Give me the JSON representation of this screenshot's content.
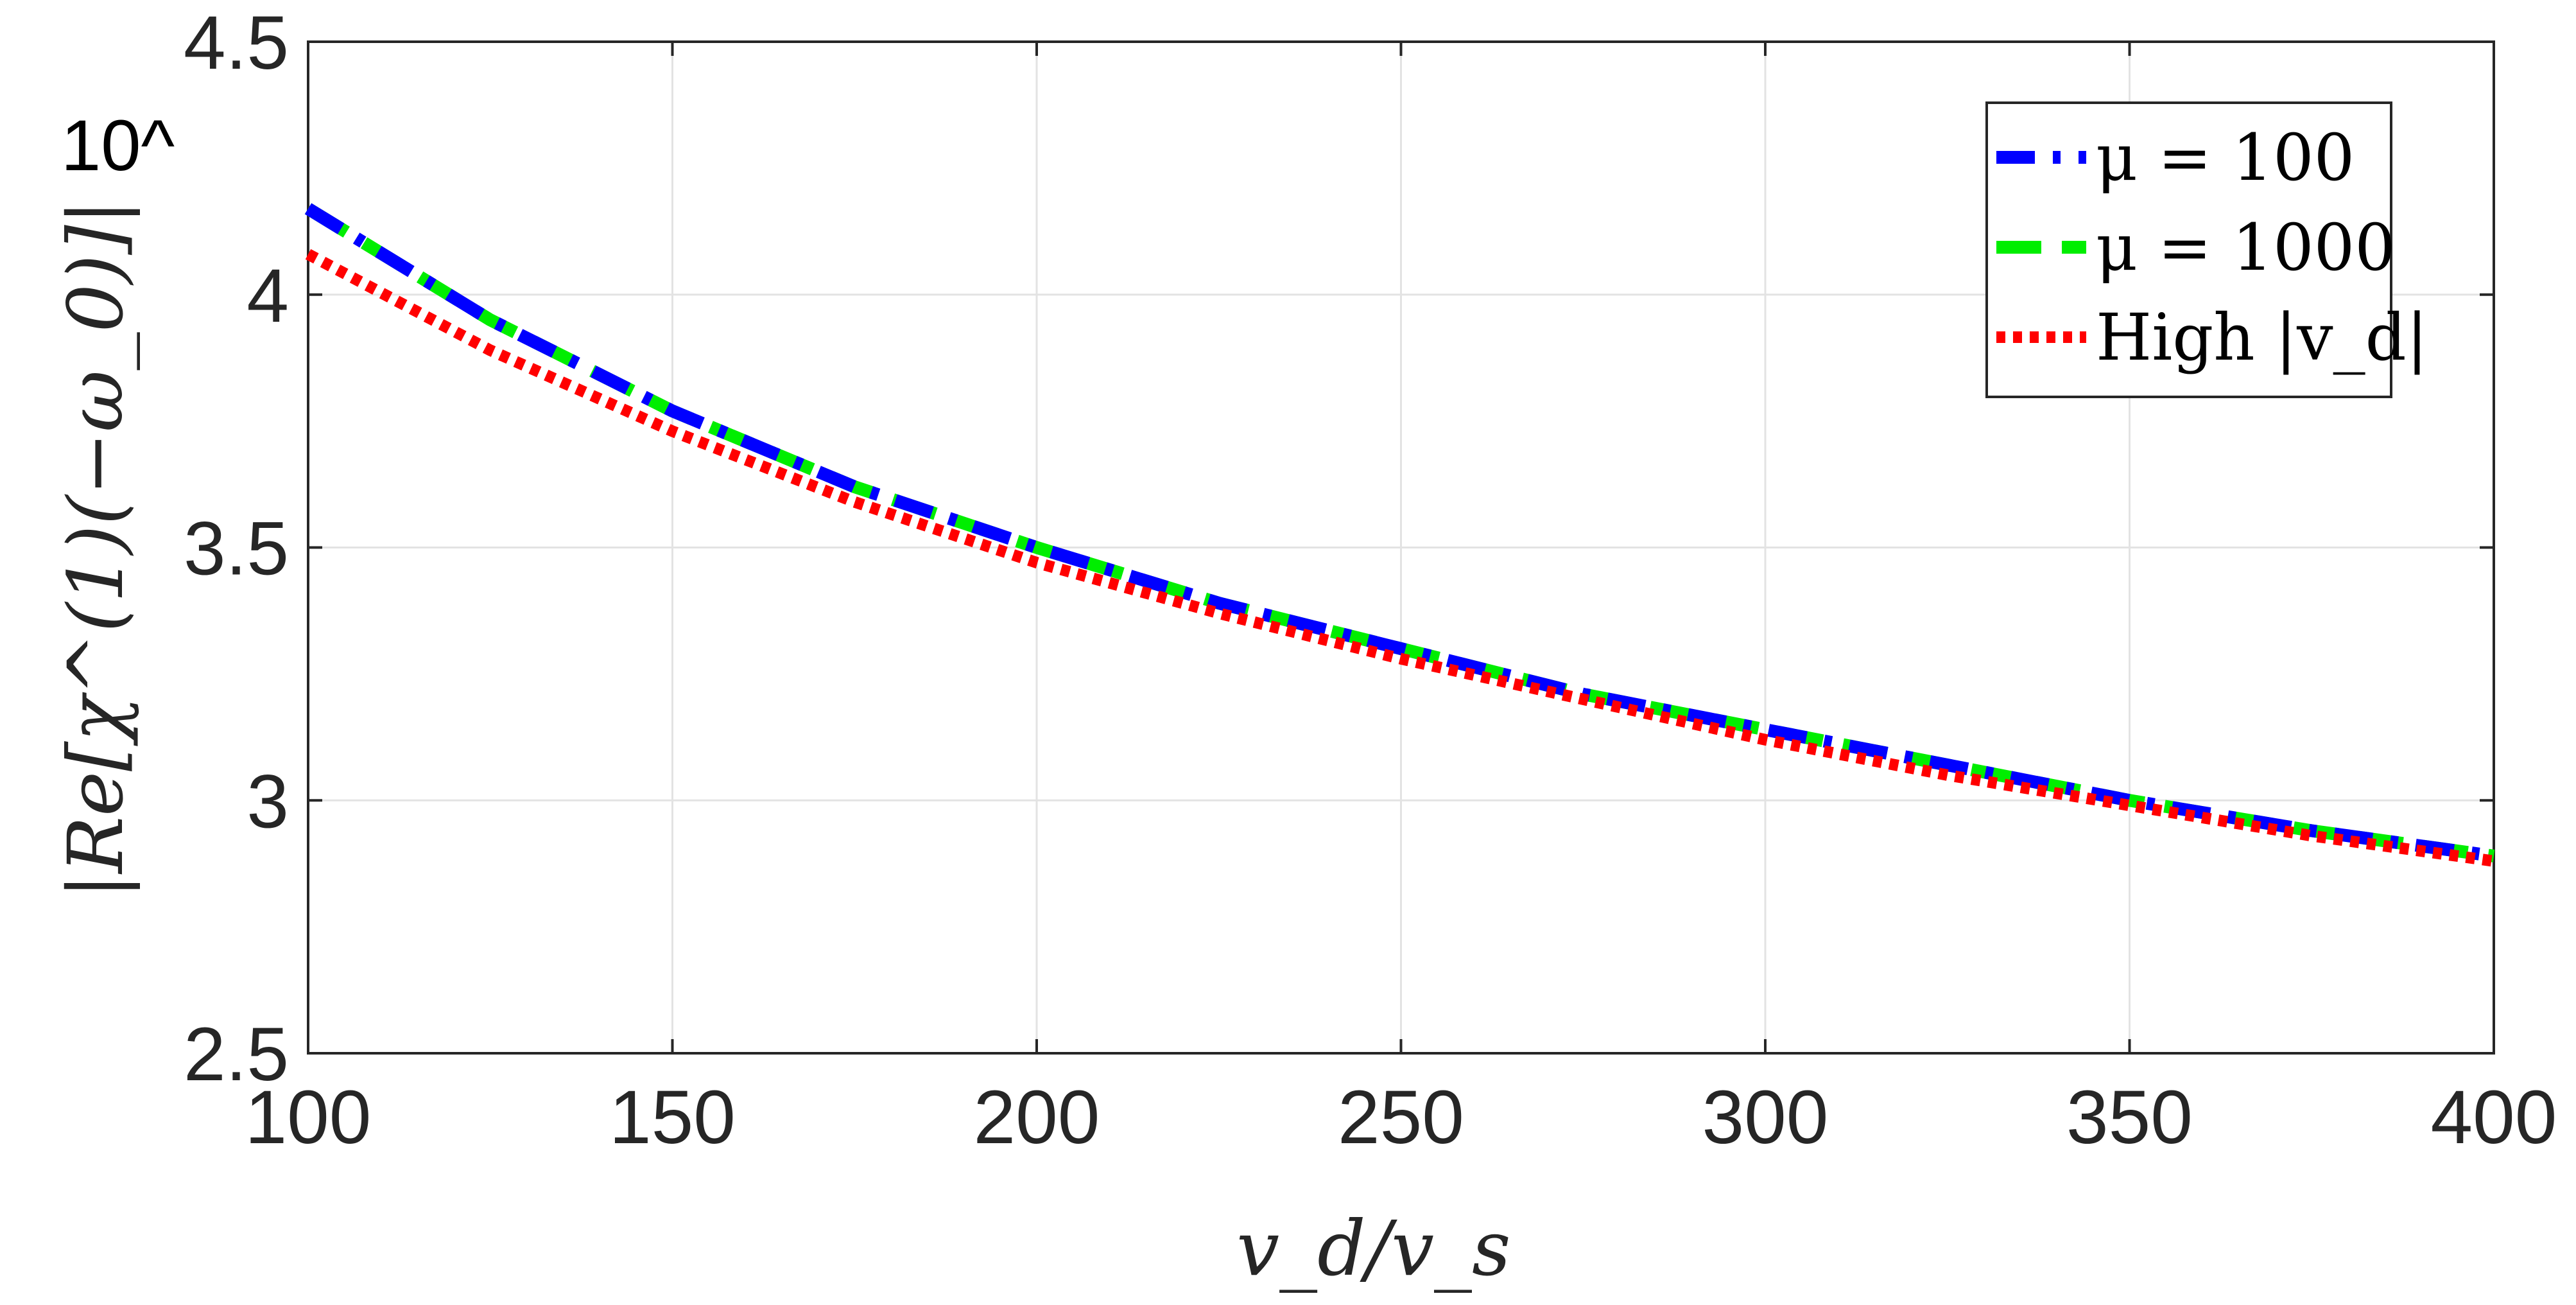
{
  "chart_data": {
    "type": "line",
    "xlabel": "v_d/v_s",
    "ylabel": "|Re[χ^(1)(−ω_0)]|",
    "y_exponent_label": "10^",
    "xlim": [
      100,
      400
    ],
    "ylim": [
      2.5,
      4.5
    ],
    "xticks": [
      "100",
      "150",
      "200",
      "250",
      "300",
      "350",
      "400"
    ],
    "yticks": [
      "2.5",
      "3",
      "3.5",
      "4",
      "4.5"
    ],
    "grid": true,
    "legend_position": "top-right",
    "series": [
      {
        "name": "μ = 100",
        "color": "#0000ff",
        "style": "dash-dot",
        "x": [
          100,
          125,
          150,
          175,
          200,
          225,
          250,
          275,
          300,
          325,
          350,
          375,
          400
        ],
        "y": [
          4.17,
          3.95,
          3.77,
          3.62,
          3.5,
          3.39,
          3.3,
          3.21,
          3.14,
          3.07,
          3.0,
          2.94,
          2.89
        ]
      },
      {
        "name": "μ = 1000",
        "color": "#00ee00",
        "style": "dash",
        "x": [
          100,
          125,
          150,
          175,
          200,
          225,
          250,
          275,
          300,
          325,
          350,
          375,
          400
        ],
        "y": [
          4.17,
          3.95,
          3.77,
          3.62,
          3.5,
          3.39,
          3.3,
          3.21,
          3.14,
          3.07,
          3.0,
          2.94,
          2.89
        ]
      },
      {
        "name": "High |v_d|",
        "color": "#ff0000",
        "style": "dotted",
        "x": [
          100,
          125,
          150,
          175,
          200,
          225,
          250,
          275,
          300,
          325,
          350,
          375,
          400
        ],
        "y": [
          4.08,
          3.89,
          3.73,
          3.59,
          3.47,
          3.37,
          3.28,
          3.2,
          3.12,
          3.05,
          2.99,
          2.93,
          2.88
        ]
      }
    ]
  }
}
